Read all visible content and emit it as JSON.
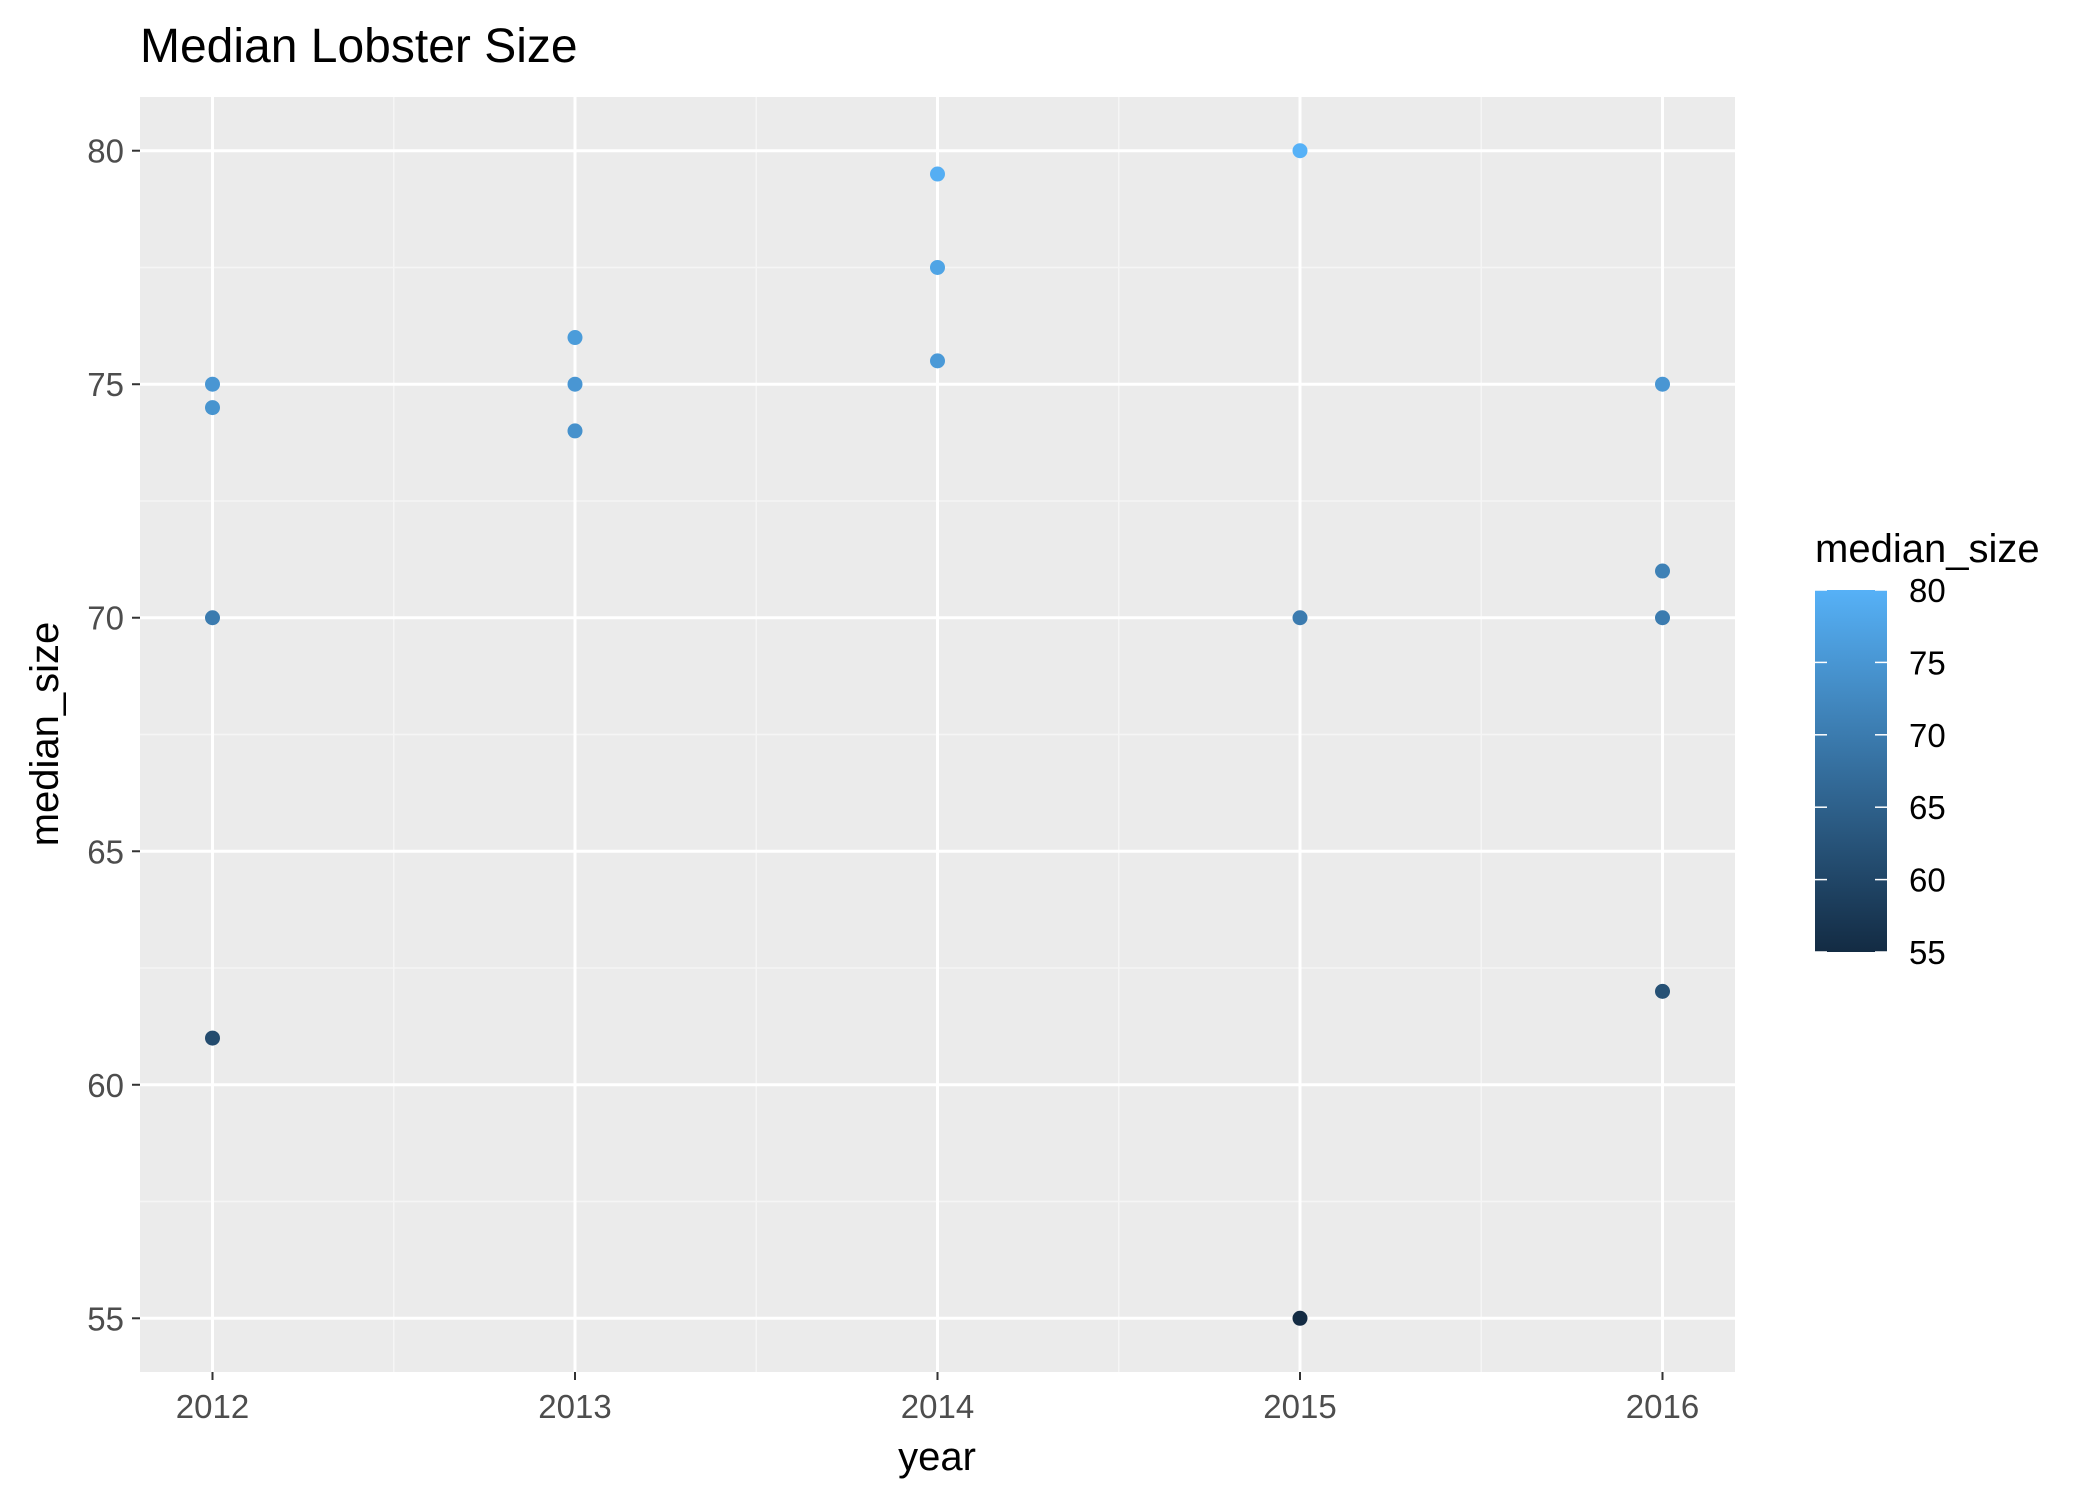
{
  "chart_data": {
    "type": "scatter",
    "title": "Median Lobster Size",
    "xlabel": "year",
    "ylabel": "median_size",
    "x_ticks": [
      "2012",
      "2013",
      "2014",
      "2015",
      "2016"
    ],
    "y_ticks": [
      "55",
      "60",
      "65",
      "70",
      "75",
      "80"
    ],
    "xlim": [
      2011.8,
      2016.2
    ],
    "ylim": [
      53.85,
      81.15
    ],
    "grid": true,
    "legend": {
      "title": "median_size",
      "position": "right",
      "type": "colorbar",
      "range": [
        55,
        80
      ],
      "labels": [
        "80",
        "75",
        "70",
        "65",
        "60",
        "55"
      ],
      "colors": [
        "#132B43",
        "#56B1F7"
      ]
    },
    "points": [
      {
        "x": 2012,
        "y": 75
      },
      {
        "x": 2012,
        "y": 74.5
      },
      {
        "x": 2012,
        "y": 70
      },
      {
        "x": 2012,
        "y": 61
      },
      {
        "x": 2013,
        "y": 76
      },
      {
        "x": 2013,
        "y": 75
      },
      {
        "x": 2013,
        "y": 74
      },
      {
        "x": 2014,
        "y": 79.5
      },
      {
        "x": 2014,
        "y": 77.5
      },
      {
        "x": 2014,
        "y": 75.5
      },
      {
        "x": 2015,
        "y": 80
      },
      {
        "x": 2015,
        "y": 70
      },
      {
        "x": 2015,
        "y": 55
      },
      {
        "x": 2016,
        "y": 75
      },
      {
        "x": 2016,
        "y": 71
      },
      {
        "x": 2016,
        "y": 70
      },
      {
        "x": 2016,
        "y": 62
      }
    ]
  },
  "colors": {
    "panel_background": "#EBEBEB",
    "grid_major": "#FFFFFF",
    "grid_minor": "#F5F5F5",
    "low": "#132B43",
    "high": "#56B1F7"
  }
}
